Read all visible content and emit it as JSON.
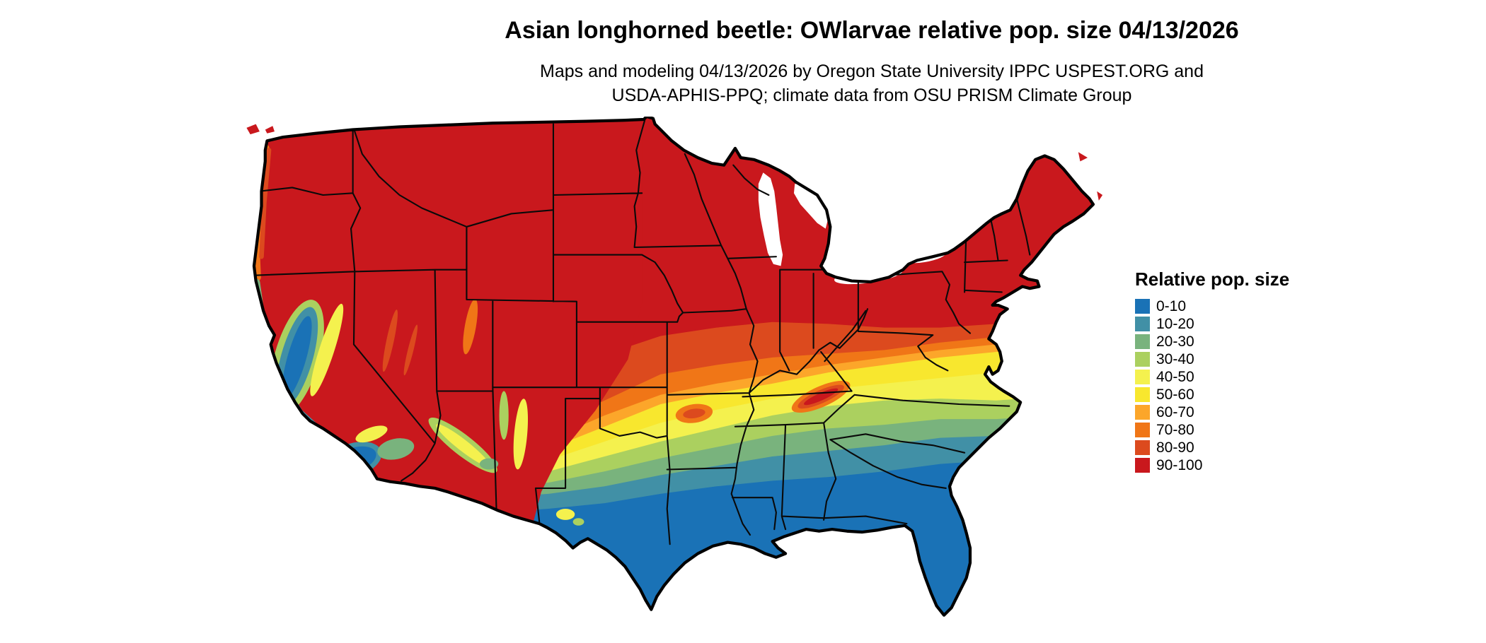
{
  "title": "Asian longhorned beetle: OWlarvae relative pop. size 04/13/2026",
  "subtitle_line1": "Maps and modeling 04/13/2026 by Oregon State University IPPC USPEST.ORG and",
  "subtitle_line2": "USDA-APHIS-PPQ; climate data from OSU PRISM Climate Group",
  "legend": {
    "title": "Relative pop. size",
    "items": [
      {
        "label": "0-10",
        "color": "#1a72b6"
      },
      {
        "label": "10-20",
        "color": "#4190a6"
      },
      {
        "label": "20-30",
        "color": "#79b37d"
      },
      {
        "label": "30-40",
        "color": "#abd05f"
      },
      {
        "label": "40-50",
        "color": "#f4f14e"
      },
      {
        "label": "50-60",
        "color": "#f8e72e"
      },
      {
        "label": "60-70",
        "color": "#fca62a"
      },
      {
        "label": "70-80",
        "color": "#f07617"
      },
      {
        "label": "80-90",
        "color": "#dc4a1e"
      },
      {
        "label": "90-100",
        "color": "#c9181d"
      }
    ]
  }
}
